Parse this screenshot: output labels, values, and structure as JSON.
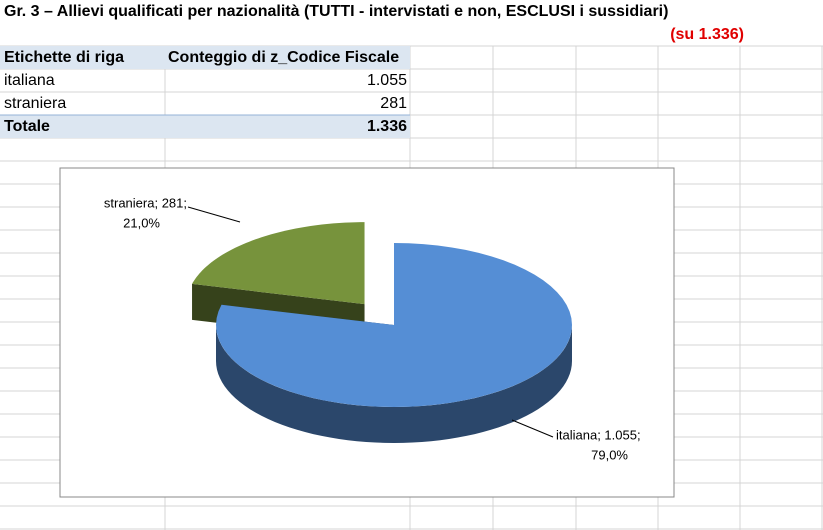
{
  "sheet": {
    "title": "Gr. 3 – Allievi qualificati per nazionalità (TUTTI - intervistati e non, ESCLUSI i sussidiari)",
    "subtitle": "(su 1.336)",
    "table": {
      "header": [
        "Etichette di riga",
        "Conteggio di z_Codice Fiscale"
      ],
      "rows": [
        [
          "italiana",
          "1.055"
        ],
        [
          "straniera",
          "281"
        ]
      ],
      "total": [
        "Totale",
        "1.336"
      ]
    }
  },
  "chart_data": {
    "type": "pie",
    "categories": [
      "italiana",
      "straniera"
    ],
    "values": [
      1055,
      281
    ],
    "colors": [
      "#558ed5",
      "#77933c"
    ],
    "data_labels": [
      [
        "italiana; 1.055;",
        "79,0%"
      ],
      [
        "straniera; 281;",
        "21,0%"
      ]
    ]
  }
}
